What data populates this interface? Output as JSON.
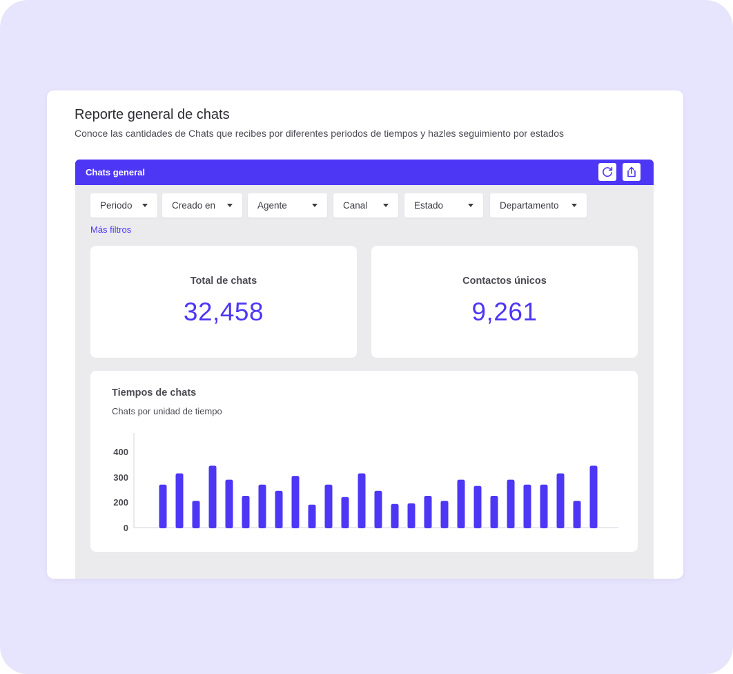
{
  "report": {
    "title": "Reporte general de chats",
    "subtitle": "Conoce las cantidades de Chats que recibes por diferentes periodos de tiempos y hazles seguimiento por estados"
  },
  "panel": {
    "title": "Chats general",
    "refresh_icon": "refresh-icon",
    "share_icon": "share-icon"
  },
  "filters": [
    {
      "label": "Periodo"
    },
    {
      "label": "Creado en"
    },
    {
      "label": "Agente"
    },
    {
      "label": "Canal"
    },
    {
      "label": "Estado"
    },
    {
      "label": "Departamento"
    }
  ],
  "more_filters": "Más filtros",
  "stats": {
    "total": {
      "label": "Total de chats",
      "value": "32,458"
    },
    "unique": {
      "label": "Contactos únicos",
      "value": "9,261"
    }
  },
  "chart": {
    "title": "Tiempos de chats",
    "subtitle": "Chats por unidad de tiempo"
  },
  "colors": {
    "accent": "#4d37f5",
    "background": "#e7e4fd",
    "panel": "#ebebee"
  },
  "chart_data": {
    "type": "bar",
    "ytick_labels": [
      "0",
      "200",
      "300",
      "400"
    ],
    "yticks": [
      0,
      200,
      300,
      400
    ],
    "ylim": [
      0,
      480
    ],
    "values": [
      270,
      315,
      205,
      345,
      290,
      225,
      270,
      245,
      305,
      180,
      270,
      220,
      315,
      245,
      185,
      190,
      225,
      205,
      290,
      265,
      225,
      290,
      270,
      270,
      315,
      205,
      345
    ],
    "grid": false,
    "legend": "none"
  }
}
